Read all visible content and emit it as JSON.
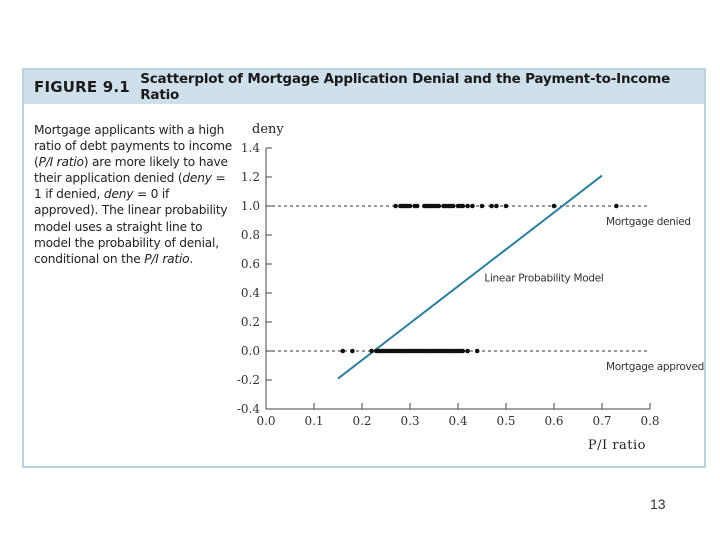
{
  "figure": {
    "number": "FIGURE 9.1",
    "title": "Scatterplot of Mortgage Application Denial and the Payment-to-Income Ratio",
    "caption": {
      "p1": "Mortgage applicants with a high ratio of debt payments to income (",
      "p2": "P/I ratio",
      "p3": ") are more likely to have their application denied (",
      "p4": "deny",
      "p5": " = 1 if denied, ",
      "p6": "deny",
      "p7": " = 0 if approved). The linear probability model uses a straight line to model the probability of denial, conditional on the ",
      "p8": "P/I ratio",
      "p9": "."
    }
  },
  "page_number": "13",
  "colors": {
    "header_bg": "#cfe0ea",
    "border": "#bcd3df",
    "line": "#2a7f9e"
  },
  "chart_data": {
    "type": "scatter",
    "ylabel": "deny",
    "xlabel": "P/I ratio",
    "xlim": [
      0.0,
      0.8
    ],
    "ylim": [
      -0.4,
      1.4
    ],
    "xticks": [
      "0.0",
      "0.1",
      "0.2",
      "0.3",
      "0.4",
      "0.5",
      "0.6",
      "0.7",
      "0.8"
    ],
    "yticks": [
      "-0.4",
      "-0.2",
      "0.0",
      "0.2",
      "0.4",
      "0.6",
      "0.8",
      "1.0",
      "1.2",
      "1.4"
    ],
    "reference_lines": [
      {
        "y": 1.0,
        "label": "Mortgage denied"
      },
      {
        "y": 0.0,
        "label": "Mortgage approved"
      }
    ],
    "fit_line": {
      "label": "Linear Probability Model",
      "x": [
        0.15,
        0.7
      ],
      "y": [
        -0.19,
        1.21
      ]
    },
    "series": [
      {
        "y": 1.0,
        "x": [
          0.27,
          0.28,
          0.285,
          0.29,
          0.295,
          0.3,
          0.31,
          0.315,
          0.33,
          0.335,
          0.34,
          0.345,
          0.35,
          0.355,
          0.36,
          0.37,
          0.375,
          0.38,
          0.385,
          0.39,
          0.4,
          0.405,
          0.41,
          0.42,
          0.43,
          0.45,
          0.47,
          0.48,
          0.5,
          0.6,
          0.73
        ]
      },
      {
        "y": 0.0,
        "x": [
          0.16,
          0.18,
          0.22,
          0.23,
          0.235,
          0.24,
          0.245,
          0.25,
          0.255,
          0.26,
          0.265,
          0.27,
          0.275,
          0.28,
          0.285,
          0.29,
          0.295,
          0.3,
          0.305,
          0.31,
          0.315,
          0.32,
          0.325,
          0.33,
          0.335,
          0.34,
          0.345,
          0.35,
          0.355,
          0.36,
          0.365,
          0.37,
          0.375,
          0.38,
          0.385,
          0.39,
          0.395,
          0.4,
          0.405,
          0.41,
          0.42,
          0.44
        ]
      }
    ]
  }
}
